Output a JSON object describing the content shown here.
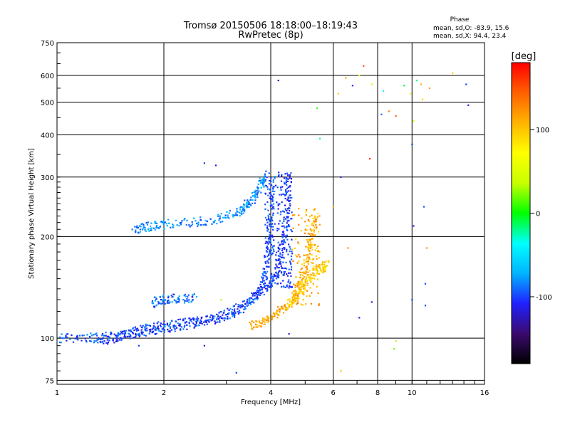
{
  "chart_data": {
    "type": "scatter",
    "title": "Tromsø 20150506 18:18:00–18:19:43",
    "subtitle": "RwPretec (8p)",
    "xlabel": "Frequency [MHz]",
    "ylabel": "Stationary phase Virtual Height [km]",
    "x_scale": "log2",
    "y_scale": "log",
    "xlim": [
      1,
      16
    ],
    "ylim": [
      73,
      750
    ],
    "x_ticks": [
      "1",
      "2",
      "4",
      "6",
      "8",
      "10",
      "16"
    ],
    "y_ticks": [
      "75",
      "100",
      "200",
      "300",
      "400",
      "500",
      "600",
      "750"
    ],
    "grid": true,
    "phase_stats": {
      "heading": "Phase",
      "o_line": "mean, sd,O: -83.9, 15.6",
      "x_line": "mean, sd,X:  94.4, 23.4"
    },
    "colorbar": {
      "label": "[deg]",
      "range": [
        -180,
        180
      ],
      "ticks": [
        "100",
        "0",
        "-100"
      ],
      "colors": [
        "#000000",
        "#3b0a6e",
        "#2020ff",
        "#00b4ff",
        "#00ffff",
        "#00ff00",
        "#c8ff00",
        "#ffff00",
        "#ffb400",
        "#ff6000",
        "#ff0000"
      ]
    },
    "traces": [
      {
        "name": "",
        "phase": -95,
        "points": [
          [
            1.0,
            100
          ],
          [
            1.2,
            100
          ],
          [
            1.4,
            101
          ],
          [
            1.6,
            104
          ],
          [
            1.8,
            107
          ],
          [
            2.0,
            109
          ],
          [
            2.3,
            111
          ],
          [
            2.6,
            113
          ],
          [
            3.0,
            117
          ],
          [
            3.4,
            124
          ],
          [
            3.7,
            137
          ],
          [
            3.85,
            155
          ],
          [
            3.95,
            185
          ],
          [
            4.0,
            230
          ],
          [
            4.05,
            300
          ]
        ]
      },
      {
        "name": "",
        "phase": -105,
        "points": [
          [
            1.3,
            98
          ],
          [
            1.5,
            101
          ],
          [
            1.7,
            104
          ],
          [
            2.0,
            107
          ],
          [
            2.4,
            110
          ],
          [
            2.8,
            114
          ],
          [
            3.2,
            122
          ],
          [
            3.6,
            133
          ],
          [
            4.0,
            145
          ],
          [
            4.2,
            160
          ],
          [
            4.35,
            190
          ],
          [
            4.45,
            240
          ],
          [
            4.5,
            310
          ]
        ]
      },
      {
        "name": "",
        "phase": -80,
        "points": [
          [
            1.65,
            210
          ],
          [
            1.8,
            214
          ],
          [
            2.0,
            217
          ],
          [
            2.4,
            220
          ],
          [
            2.8,
            225
          ],
          [
            3.2,
            235
          ],
          [
            3.4,
            246
          ],
          [
            3.6,
            262
          ],
          [
            3.75,
            285
          ],
          [
            3.85,
            305
          ]
        ]
      },
      {
        "name": "",
        "phase": -90,
        "points": [
          [
            1.85,
            127
          ],
          [
            2.0,
            130
          ],
          [
            2.2,
            131
          ],
          [
            2.45,
            132
          ]
        ]
      },
      {
        "name": "",
        "phase": 110,
        "points": [
          [
            3.5,
            109
          ],
          [
            3.8,
            112
          ],
          [
            4.1,
            117
          ],
          [
            4.4,
            124
          ],
          [
            4.7,
            135
          ],
          [
            4.9,
            150
          ],
          [
            5.05,
            172
          ],
          [
            5.2,
            200
          ],
          [
            5.35,
            225
          ]
        ]
      },
      {
        "name": "",
        "phase": 95,
        "points": [
          [
            4.5,
            125
          ],
          [
            4.8,
            135
          ],
          [
            5.0,
            146
          ],
          [
            5.3,
            158
          ],
          [
            5.6,
            162
          ],
          [
            5.75,
            165
          ]
        ]
      }
    ],
    "scatter_points": [
      [
        6.8,
        560,
        -110
      ],
      [
        6.5,
        590,
        115
      ],
      [
        7.1,
        600,
        70
      ],
      [
        6.2,
        530,
        95
      ],
      [
        7.7,
        565,
        50
      ],
      [
        8.3,
        540,
        -40
      ],
      [
        8.6,
        470,
        130
      ],
      [
        9.5,
        560,
        -5
      ],
      [
        9.9,
        530,
        80
      ],
      [
        10.3,
        580,
        -20
      ],
      [
        10.6,
        565,
        110
      ],
      [
        11.2,
        550,
        120
      ],
      [
        13.0,
        610,
        95
      ],
      [
        14.2,
        565,
        -100
      ],
      [
        14.4,
        490,
        -120
      ],
      [
        7.3,
        640,
        150
      ],
      [
        8.2,
        460,
        -90
      ],
      [
        9.0,
        455,
        140
      ],
      [
        10.1,
        440,
        60
      ],
      [
        10.7,
        510,
        90
      ],
      [
        10.0,
        375,
        -100
      ],
      [
        10.1,
        215,
        -110
      ],
      [
        10.8,
        245,
        -95
      ],
      [
        11.0,
        185,
        120
      ],
      [
        10.9,
        145,
        -100
      ],
      [
        10.9,
        125,
        -100
      ],
      [
        10.0,
        130,
        -100
      ],
      [
        7.6,
        340,
        160
      ],
      [
        6.6,
        185,
        120
      ],
      [
        7.1,
        115,
        -110
      ],
      [
        7.7,
        128,
        -115
      ],
      [
        6.3,
        80,
        100
      ],
      [
        6.0,
        245,
        115
      ],
      [
        6.3,
        300,
        -120
      ],
      [
        5.5,
        390,
        -20
      ],
      [
        5.4,
        480,
        10
      ],
      [
        4.2,
        580,
        -120
      ],
      [
        2.6,
        330,
        -100
      ],
      [
        2.8,
        325,
        -110
      ],
      [
        2.6,
        95,
        -110
      ],
      [
        2.9,
        130,
        30
      ],
      [
        3.2,
        79,
        -100
      ],
      [
        1.7,
        95,
        -100
      ],
      [
        4.5,
        103,
        -120
      ],
      [
        9.0,
        98,
        30
      ],
      [
        8.9,
        93,
        20
      ]
    ]
  }
}
